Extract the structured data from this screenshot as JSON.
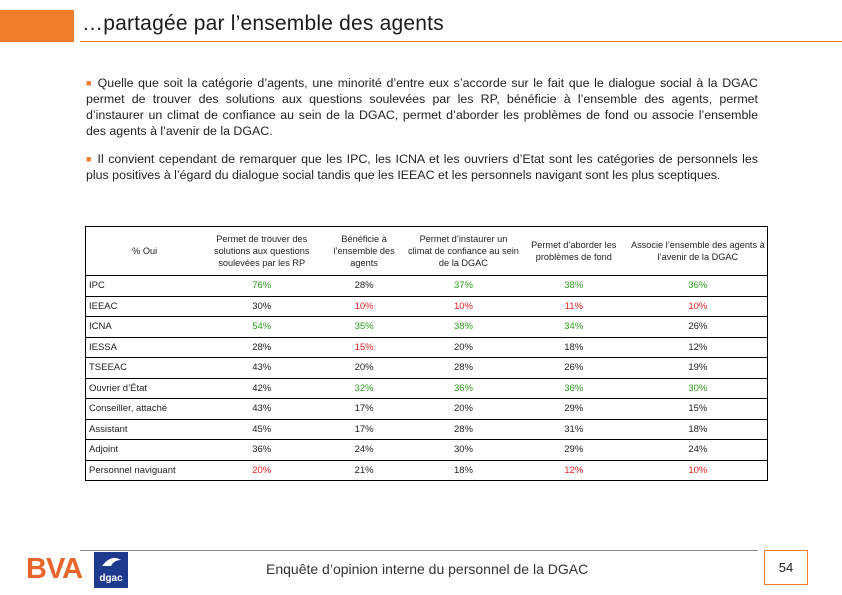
{
  "title": "…partagée par l’ensemble des agents",
  "paragraphs": [
    "Quelle que soit la catégorie d’agents, une minorité d’entre eux s’accorde sur le fait que le dialogue social à la DGAC permet de trouver des solutions aux questions soulevées par les RP, bénéficie à l’ensemble des agents, permet d’instaurer un climat de confiance au sein de la DGAC, permet d’aborder les problèmes de fond ou associe l’ensemble des agents à l’avenir de la DGAC.",
    "Il convient cependant de remarquer que les IPC, les ICNA et les ouvriers d’Etat sont les catégories de personnels les plus positives à l’égard du dialogue social tandis que les IEEAC et les personnels navigant sont les plus sceptiques."
  ],
  "table": {
    "corner": "% Oui",
    "headers": [
      "Permet de trouver des solutions aux questions soulevées par les RP",
      "Bénéficie à l’ensemble des agents",
      "Permet d’instaurer un climat de confiance au sein de la DGAC",
      "Permet d’aborder les problèmes de fond",
      "Associe l’ensemble des agents à l’avenir de la DGAC"
    ],
    "rows": [
      {
        "label": "IPC",
        "values": [
          "76%",
          "28%",
          "37%",
          "38%",
          "36%"
        ],
        "colors": [
          "#2e9e1f",
          "#222222",
          "#2e9e1f",
          "#2e9e1f",
          "#2e9e1f"
        ]
      },
      {
        "label": "IEEAC",
        "values": [
          "30%",
          "10%",
          "10%",
          "11%",
          "10%"
        ],
        "colors": [
          "#222222",
          "#e02424",
          "#e02424",
          "#e02424",
          "#e02424"
        ]
      },
      {
        "label": "ICNA",
        "values": [
          "54%",
          "35%",
          "38%",
          "34%",
          "26%"
        ],
        "colors": [
          "#2e9e1f",
          "#2e9e1f",
          "#2e9e1f",
          "#2e9e1f",
          "#222222"
        ]
      },
      {
        "label": "IESSA",
        "values": [
          "28%",
          "15%",
          "20%",
          "18%",
          "12%"
        ],
        "colors": [
          "#222222",
          "#e02424",
          "#222222",
          "#222222",
          "#222222"
        ]
      },
      {
        "label": "TSEEAC",
        "values": [
          "43%",
          "20%",
          "28%",
          "26%",
          "19%"
        ],
        "colors": [
          "#222222",
          "#222222",
          "#222222",
          "#222222",
          "#222222"
        ]
      },
      {
        "label": "Ouvrier d’État",
        "values": [
          "42%",
          "32%",
          "36%",
          "36%",
          "30%"
        ],
        "colors": [
          "#222222",
          "#2e9e1f",
          "#2e9e1f",
          "#2e9e1f",
          "#2e9e1f"
        ]
      },
      {
        "label": "Conseiller, attaché",
        "values": [
          "43%",
          "17%",
          "20%",
          "29%",
          "15%"
        ],
        "colors": [
          "#222222",
          "#222222",
          "#222222",
          "#222222",
          "#222222"
        ]
      },
      {
        "label": "Assistant",
        "values": [
          "45%",
          "17%",
          "28%",
          "31%",
          "18%"
        ],
        "colors": [
          "#222222",
          "#222222",
          "#222222",
          "#222222",
          "#222222"
        ]
      },
      {
        "label": "Adjoint",
        "values": [
          "36%",
          "24%",
          "30%",
          "29%",
          "24%"
        ],
        "colors": [
          "#222222",
          "#222222",
          "#222222",
          "#222222",
          "#222222"
        ]
      },
      {
        "label": "Personnel naviguant",
        "values": [
          "20%",
          "21%",
          "18%",
          "12%",
          "10%"
        ],
        "colors": [
          "#e02424",
          "#222222",
          "#222222",
          "#e02424",
          "#e02424"
        ]
      }
    ]
  },
  "footer": {
    "brand": "BVA",
    "logo_text": "dgac",
    "text": "Enquête d’opinion interne du personnel de la DGAC",
    "page": "54"
  },
  "colors": {
    "accent": "#f07d2a",
    "positive": "#2e9e1f",
    "negative": "#e02424"
  }
}
